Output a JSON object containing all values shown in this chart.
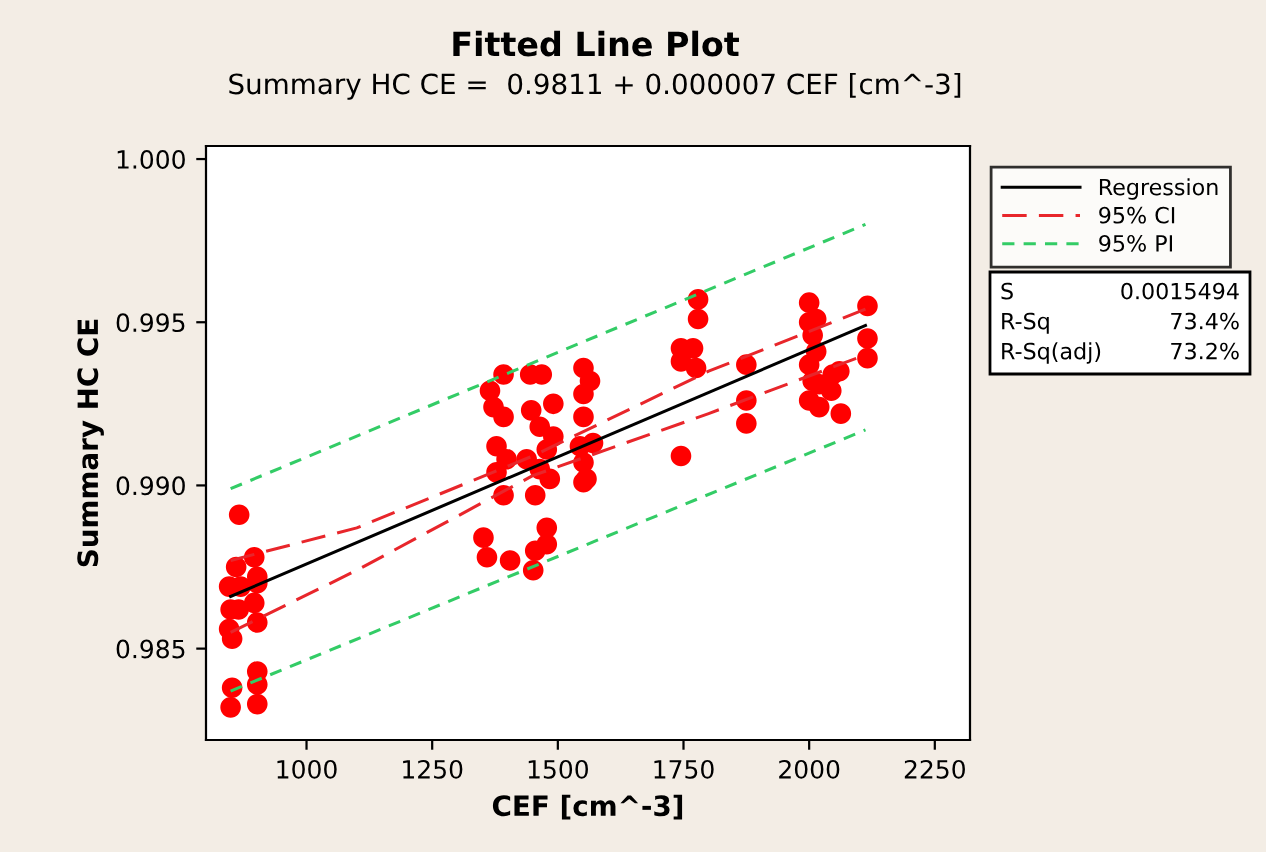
{
  "chart_data": {
    "type": "scatter",
    "title": "Fitted Line Plot",
    "subtitle": "Summary HC CE =  0.9811 + 0.000007 CEF [cm^-3]",
    "xlabel": "CEF [cm^-3]",
    "ylabel": "Summary HC CE",
    "xlim": [
      800,
      2320
    ],
    "xticks": [
      1000,
      1250,
      1500,
      1750,
      2000,
      2250
    ],
    "ylim": [
      0.9822,
      1.0004
    ],
    "yticks": [
      {
        "value": 0.985,
        "label": "0.985"
      },
      {
        "value": 0.99,
        "label": "0.990"
      },
      {
        "value": 0.995,
        "label": "0.995"
      },
      {
        "value": 1.0,
        "label": "1.000"
      }
    ],
    "grid": false,
    "legend": "right",
    "annotations": [
      "S",
      "0.0015494",
      "R-Sq",
      "73.4%",
      "R-Sq(adj)",
      "73.2%"
    ],
    "series": [
      {
        "color": "#ff0000",
        "marker": "circle",
        "x": [
          866,
          860,
          896,
          902,
          846,
          869,
          902,
          849,
          865,
          896,
          902,
          846,
          852,
          852,
          902,
          902,
          849,
          902,
          1392,
          1445,
          1468,
          1365,
          1372,
          1392,
          1447,
          1491,
          1464,
          1491,
          1378,
          1398,
          1438,
          1478,
          1378,
          1464,
          1484,
          1392,
          1455,
          1551,
          1551,
          1551,
          1544,
          1551,
          1551,
          1352,
          1359,
          1405,
          1478,
          1455,
          1478,
          1451,
          1564,
          1570,
          1557,
          1779,
          1779,
          1745,
          1769,
          1745,
          1775,
          1875,
          1875,
          1875,
          1745,
          2000,
          2000,
          2014,
          2007,
          2014,
          2000,
          2007,
          2020,
          2047,
          2060,
          2044,
          2000,
          2020,
          2063,
          2116,
          2116,
          2116
        ],
        "values": [
          0.9891,
          0.9875,
          0.9878,
          0.9872,
          0.9869,
          0.9869,
          0.987,
          0.9862,
          0.9862,
          0.9864,
          0.9858,
          0.9856,
          0.9853,
          0.9838,
          0.9843,
          0.9839,
          0.9832,
          0.9833,
          0.9934,
          0.9934,
          0.9934,
          0.9929,
          0.9924,
          0.9921,
          0.9923,
          0.9925,
          0.9918,
          0.9915,
          0.9912,
          0.9908,
          0.9908,
          0.9911,
          0.9904,
          0.9905,
          0.9902,
          0.9897,
          0.9897,
          0.9936,
          0.9928,
          0.9921,
          0.9912,
          0.9907,
          0.9901,
          0.9884,
          0.9878,
          0.9877,
          0.9887,
          0.988,
          0.9882,
          0.9874,
          0.9932,
          0.9913,
          0.9902,
          0.9957,
          0.9951,
          0.9942,
          0.9942,
          0.9938,
          0.9936,
          0.9937,
          0.9926,
          0.9919,
          0.9909,
          0.9956,
          0.995,
          0.9951,
          0.9946,
          0.9941,
          0.9937,
          0.9932,
          0.9931,
          0.9934,
          0.9935,
          0.9929,
          0.9926,
          0.9924,
          0.9922,
          0.9955,
          0.9945,
          0.9939
        ]
      },
      {
        "type": "line",
        "name": "Regression",
        "color": "#000000",
        "line_style": "solid",
        "x": [
          849,
          2112
        ],
        "values": [
          0.9866,
          0.9949
        ]
      },
      {
        "type": "line",
        "name": "95% CI",
        "color": "#e8262b",
        "line_style": "dashed",
        "x": [
          849,
          1100,
          1450,
          1800,
          2112
        ],
        "values": [
          0.9877,
          0.9887,
          0.9909,
          0.9935,
          0.9954
        ]
      },
      {
        "type": "line",
        "color": "#e8262b",
        "line_style": "dashed",
        "x": [
          849,
          1100,
          1450,
          1800,
          2112
        ],
        "values": [
          0.9855,
          0.9874,
          0.9903,
          0.9922,
          0.994
        ]
      },
      {
        "type": "line",
        "name": "95% PI",
        "color": "#33cc66",
        "line_style": "dotted",
        "x": [
          849,
          2112
        ],
        "values": [
          0.9899,
          0.998
        ]
      },
      {
        "type": "line",
        "color": "#33cc66",
        "line_style": "dotted",
        "x": [
          849,
          2112
        ],
        "values": [
          0.9837,
          0.9917
        ]
      }
    ]
  }
}
